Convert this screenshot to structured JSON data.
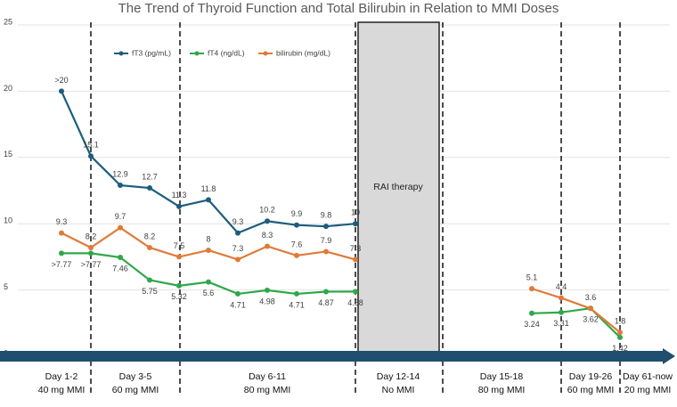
{
  "chart_data": {
    "type": "line",
    "title": "The Trend of Thyroid Function and Total Bilirubin in Relation to MMI Doses",
    "categories": [
      null,
      null,
      null,
      null,
      null,
      null,
      null,
      null,
      null,
      null,
      null,
      null,
      null,
      null,
      null,
      null,
      null,
      null,
      null,
      null
    ],
    "series": [
      {
        "name": "fT3 (pg/mL)",
        "color": "#1c5d7e",
        "values": [
          20,
          15.1,
          12.9,
          12.7,
          11.3,
          11.8,
          9.3,
          10.2,
          9.9,
          9.8,
          10,
          null,
          null,
          null,
          null,
          null,
          null,
          null,
          null,
          null
        ],
        "value_labels": [
          ">20",
          "15.1",
          "12.9",
          "12.7",
          "11.3",
          "11.8",
          "9.3",
          "10.2",
          "9.9",
          "9.8",
          "10",
          null,
          null,
          null,
          null,
          null,
          null,
          null,
          null,
          null
        ]
      },
      {
        "name": "fT4 (ng/dL)",
        "color": "#2fa84a",
        "values": [
          7.77,
          7.77,
          7.46,
          5.75,
          5.32,
          5.6,
          4.71,
          4.98,
          4.71,
          4.87,
          4.88,
          null,
          null,
          null,
          null,
          null,
          3.24,
          3.31,
          3.62,
          1.42
        ],
        "value_labels": [
          ">7.77",
          ">7.77",
          "7.46",
          "5.75",
          "5.32",
          "5.6",
          "4.71",
          "4.98",
          "4.71",
          "4.87",
          "4.88",
          null,
          null,
          null,
          null,
          null,
          "3.24",
          "3.31",
          "3.62",
          "1.42"
        ]
      },
      {
        "name": "bilirubin (mg/dL)",
        "color": "#e07a38",
        "values": [
          9.3,
          8.2,
          9.7,
          8.2,
          7.5,
          8,
          7.3,
          8.3,
          7.6,
          7.9,
          7.3,
          null,
          null,
          null,
          null,
          null,
          5.1,
          4.4,
          3.6,
          1.8
        ],
        "value_labels": [
          "9.3",
          "8.2",
          "9.7",
          "8.2",
          "7.5",
          "8",
          "7.3",
          "8.3",
          "7.6",
          "7.9",
          "7.3",
          null,
          null,
          null,
          null,
          null,
          "5.1",
          "4.4",
          "3.6",
          "1.8"
        ]
      }
    ],
    "ylim": [
      0,
      25
    ],
    "yticks": [
      0,
      5,
      10,
      15,
      20,
      25
    ],
    "grid": true,
    "legend": "top",
    "annotation": "RAI therapy",
    "phases": [
      {
        "day": "Day 1-2",
        "dose": "40 mg MMI"
      },
      {
        "day": "Day 3-5",
        "dose": "60 mg MMI"
      },
      {
        "day": "Day 6-11",
        "dose": "80 mg MMI"
      },
      {
        "day": "Day 12-14",
        "dose": "No MMI"
      },
      {
        "day": "Day 15-18",
        "dose": "80 mg MMI"
      },
      {
        "day": "Day 19-26",
        "dose": "60 mg MMI"
      },
      {
        "day": "Day 61-now",
        "dose": "20 mg MMI"
      }
    ]
  }
}
